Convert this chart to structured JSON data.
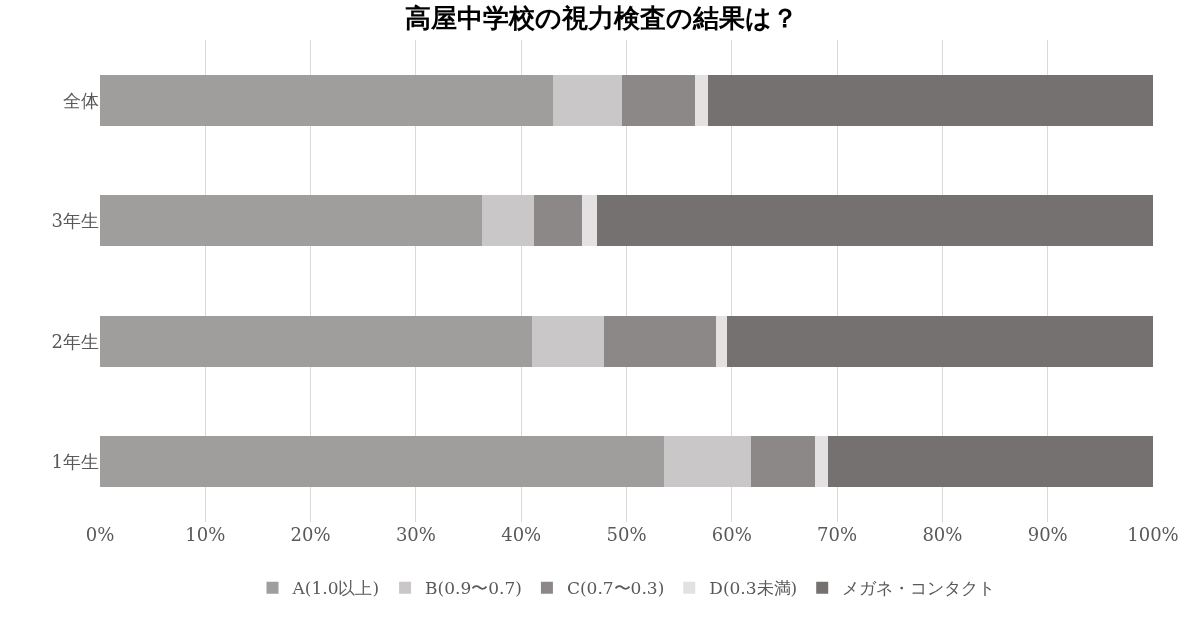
{
  "chart_data": {
    "type": "bar",
    "orientation": "horizontal",
    "stacked": true,
    "title": "高屋中学校の視力検査の結果は？",
    "categories": [
      "全体",
      "3年生",
      "2年生",
      "1年生"
    ],
    "series": [
      {
        "name": "A(1.0以上)",
        "color": "#a09d9d",
        "values": [
          43.0,
          36.3,
          41.0,
          53.6
        ]
      },
      {
        "name": "B(0.9〜0.7)",
        "color": "#c9c7c7",
        "values": [
          6.6,
          4.9,
          6.9,
          8.2
        ]
      },
      {
        "name": "C(0.7〜0.3)",
        "color": "#8c8888",
        "values": [
          6.9,
          4.6,
          10.6,
          6.1
        ]
      },
      {
        "name": "D(0.3未満)",
        "color": "#e3e1e1",
        "values": [
          1.2,
          1.4,
          1.0,
          1.2
        ]
      },
      {
        "name": "メガネ・コンタクト",
        "color": "#767171",
        "values": [
          42.3,
          52.8,
          40.5,
          30.9
        ]
      }
    ],
    "xlim": [
      0,
      100
    ],
    "xticks": [
      {
        "value": 0,
        "label": "0%"
      },
      {
        "value": 10,
        "label": "10%"
      },
      {
        "value": 20,
        "label": "20%"
      },
      {
        "value": 30,
        "label": "30%"
      },
      {
        "value": 40,
        "label": "40%"
      },
      {
        "value": 50,
        "label": "50%"
      },
      {
        "value": 60,
        "label": "60%"
      },
      {
        "value": 70,
        "label": "70%"
      },
      {
        "value": 80,
        "label": "80%"
      },
      {
        "value": 90,
        "label": "90%"
      },
      {
        "value": 100,
        "label": "100%"
      }
    ],
    "grid": "x",
    "legend": "bottom"
  }
}
